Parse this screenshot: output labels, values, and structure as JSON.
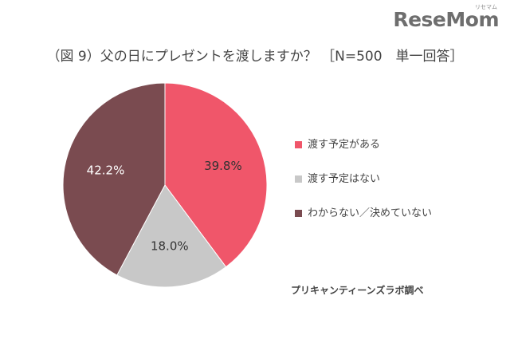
{
  "branding": {
    "logo": "ReseMom",
    "logo_sub": "リセマム"
  },
  "chart_data": {
    "type": "pie",
    "title": "（図 9）父の日にプレゼントを渡しますか？ ［N=500　単一回答］",
    "slices": [
      {
        "label": "渡す予定がある",
        "value": 39.8,
        "display": "39.8%",
        "color": "#f0566a",
        "label_color": "#333333"
      },
      {
        "label": "渡す予定はない",
        "value": 18.0,
        "display": "18.0%",
        "color": "#c8c8c8",
        "label_color": "#333333"
      },
      {
        "label": "わからない／決めていない",
        "value": 42.2,
        "display": "42.2%",
        "color": "#7a4b50",
        "label_color": "#ffffff"
      }
    ],
    "legend_position": "right",
    "source": "プリキャンティーンズラボ調べ"
  }
}
